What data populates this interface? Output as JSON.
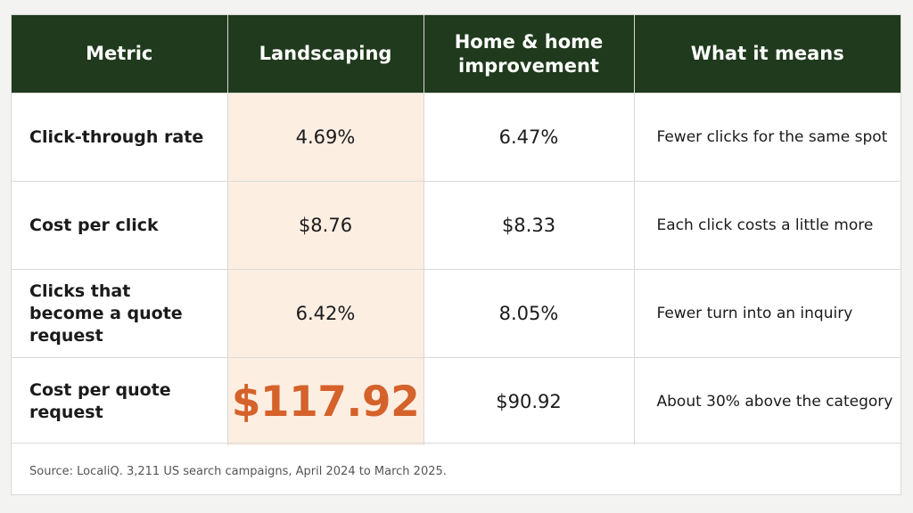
{
  "table": {
    "headers": [
      "Metric",
      "Landscaping",
      "Home & home improvement",
      "What it means"
    ],
    "rows": [
      {
        "metric": "Click-through rate",
        "landscaping": "4.69%",
        "home": "6.47%",
        "meaning": "Fewer clicks for the same spot"
      },
      {
        "metric": "Cost per click",
        "landscaping": "$8.76",
        "home": "$8.33",
        "meaning": "Each click costs a little more"
      },
      {
        "metric": "Clicks that become a quote request",
        "landscaping": "6.42%",
        "home": "8.05%",
        "meaning": "Fewer turn into an inquiry"
      },
      {
        "metric": "Cost per quote request",
        "landscaping": "$117.92",
        "home": "$90.92",
        "meaning": "About 30% above the category"
      }
    ]
  },
  "source": "Source: LocaliQ. 3,211 US search campaigns, April 2024 to March 2025.",
  "colors": {
    "header_bg": "#1f3a1c",
    "highlight_bg": "#fdeee2",
    "highlight_text": "#d4622a"
  }
}
